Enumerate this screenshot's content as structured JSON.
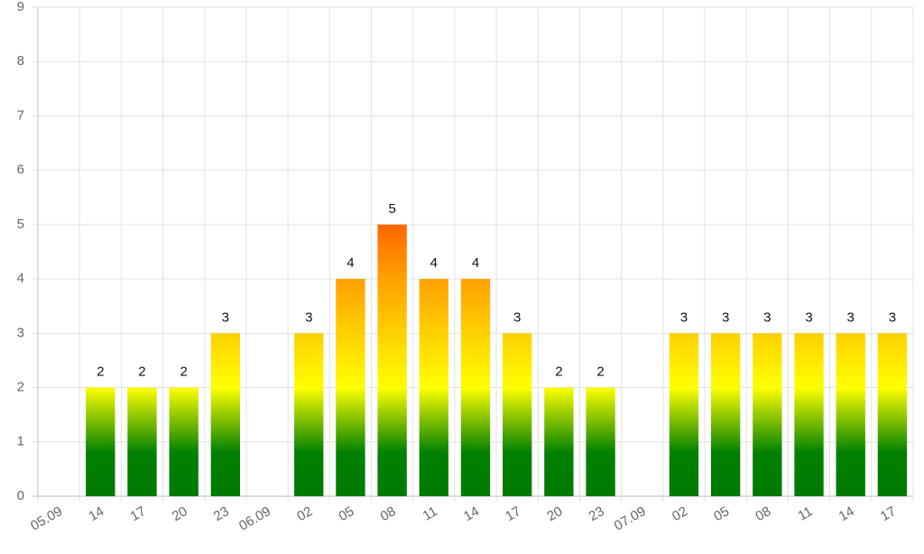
{
  "chart_data": {
    "type": "bar",
    "categories": [
      "05.09",
      "14",
      "17",
      "20",
      "23",
      "06.09",
      "02",
      "05",
      "08",
      "11",
      "14",
      "17",
      "20",
      "23",
      "07.09",
      "02",
      "05",
      "08",
      "11",
      "14",
      "17"
    ],
    "values": [
      null,
      2,
      2,
      2,
      3,
      null,
      3,
      4,
      5,
      4,
      4,
      3,
      2,
      2,
      null,
      3,
      3,
      3,
      3,
      3,
      3
    ],
    "color_scale": [
      {
        "value": 0,
        "color": "#007a00"
      },
      {
        "value": 0.8,
        "color": "#008000"
      },
      {
        "value": 2,
        "color": "#ffff00"
      },
      {
        "value": 3,
        "color": "#ffd000"
      },
      {
        "value": 4,
        "color": "#ffa000"
      },
      {
        "value": 5,
        "color": "#ff6600"
      }
    ],
    "ylim": [
      0,
      9
    ],
    "yticks": [
      0,
      1,
      2,
      3,
      4,
      5,
      6,
      7,
      8,
      9
    ],
    "grid": true
  }
}
